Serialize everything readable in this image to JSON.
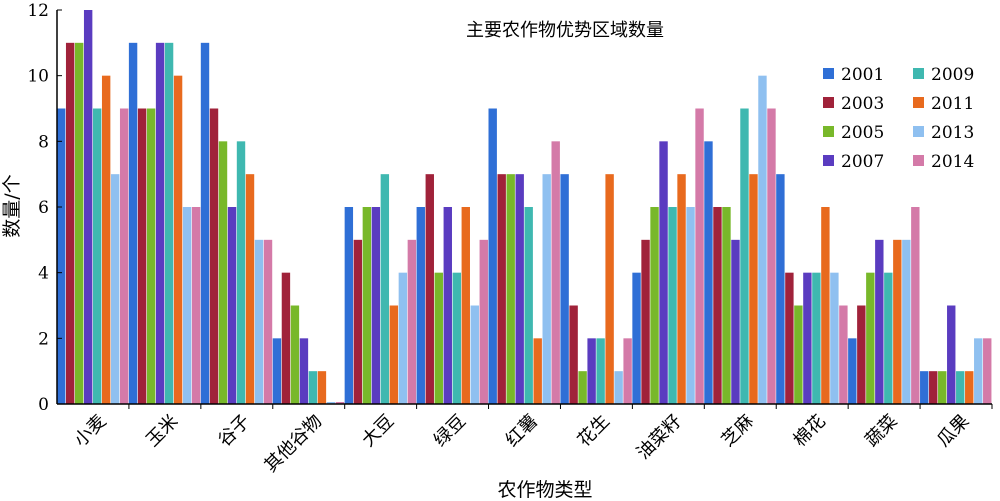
{
  "chart_data": {
    "type": "bar",
    "title": "主要农作物优势区域数量",
    "xlabel": "农作物类型",
    "ylabel": "数量/个",
    "ylim": [
      0,
      12
    ],
    "yticks": [
      0,
      2,
      4,
      6,
      8,
      10,
      12
    ],
    "grid": false,
    "legend_position": "top-right",
    "categories": [
      "小麦",
      "玉米",
      "谷子",
      "其他谷物",
      "大豆",
      "绿豆",
      "红薯",
      "花生",
      "油菜籽",
      "芝麻",
      "棉花",
      "蔬菜",
      "瓜果"
    ],
    "series": [
      {
        "name": "2001",
        "color": "#2f6fd6",
        "values": [
          9,
          11,
          11,
          2,
          6,
          6,
          9,
          7,
          4,
          8,
          7,
          2,
          1
        ]
      },
      {
        "name": "2003",
        "color": "#a0223a",
        "values": [
          11,
          9,
          9,
          4,
          5,
          7,
          7,
          3,
          5,
          6,
          4,
          3,
          1
        ]
      },
      {
        "name": "2005",
        "color": "#78b82a",
        "values": [
          11,
          9,
          8,
          3,
          6,
          4,
          7,
          1,
          6,
          6,
          3,
          4,
          1
        ]
      },
      {
        "name": "2007",
        "color": "#5a3cc0",
        "values": [
          12,
          11,
          6,
          2,
          6,
          6,
          7,
          2,
          8,
          5,
          4,
          5,
          3
        ]
      },
      {
        "name": "2009",
        "color": "#3fb8b0",
        "values": [
          9,
          11,
          8,
          1,
          7,
          4,
          6,
          2,
          6,
          9,
          4,
          4,
          1
        ]
      },
      {
        "name": "2011",
        "color": "#e86a1e",
        "values": [
          10,
          10,
          7,
          1,
          3,
          6,
          2,
          7,
          7,
          7,
          6,
          5,
          1
        ]
      },
      {
        "name": "2013",
        "color": "#8fc0f0",
        "values": [
          7,
          6,
          5,
          0,
          4,
          3,
          7,
          1,
          6,
          10,
          4,
          5,
          2
        ]
      },
      {
        "name": "2014",
        "color": "#d47aa8",
        "values": [
          9,
          6,
          5,
          0,
          5,
          5,
          8,
          2,
          9,
          9,
          3,
          6,
          2
        ]
      }
    ]
  }
}
